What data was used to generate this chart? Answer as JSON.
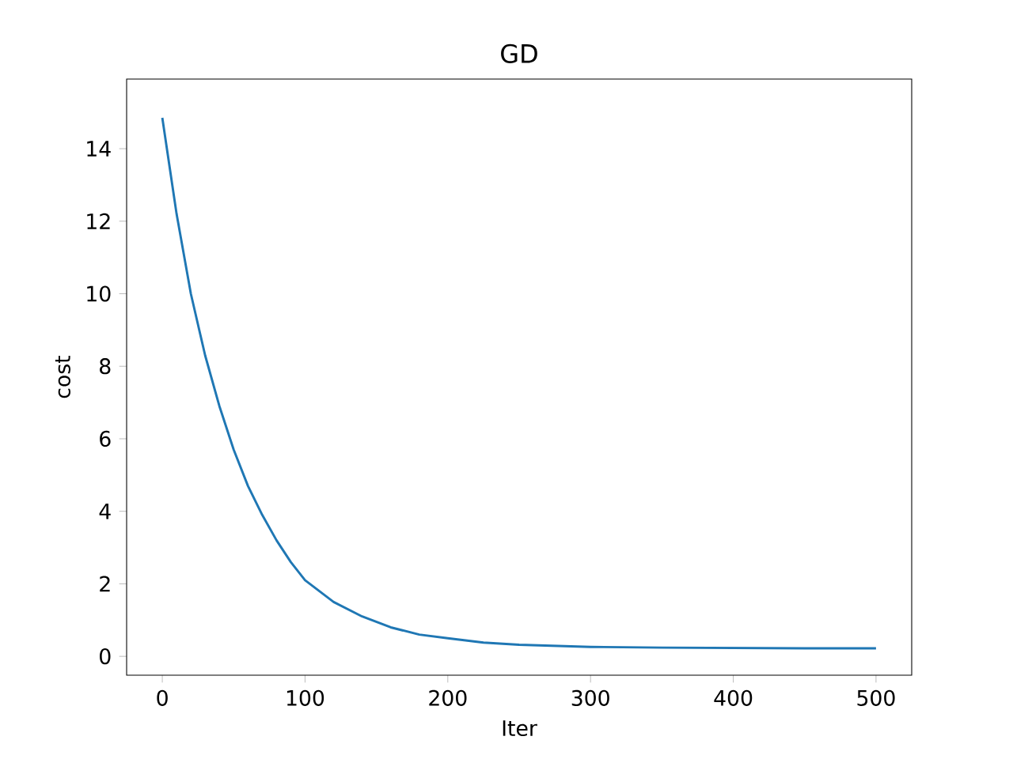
{
  "chart_data": {
    "type": "line",
    "title": "GD",
    "xlabel": "Iter",
    "ylabel": "cost",
    "x": [
      0,
      10,
      20,
      30,
      40,
      50,
      60,
      70,
      80,
      90,
      100,
      120,
      140,
      160,
      180,
      200,
      225,
      250,
      300,
      350,
      400,
      450,
      500
    ],
    "series": [
      {
        "color": "#1f77b4",
        "values": [
          14.85,
          12.2,
          10.0,
          8.3,
          6.9,
          5.7,
          4.7,
          3.9,
          3.2,
          2.6,
          2.1,
          1.5,
          1.1,
          0.8,
          0.6,
          0.5,
          0.38,
          0.32,
          0.26,
          0.24,
          0.23,
          0.22,
          0.22
        ]
      }
    ],
    "xlim": [
      -25,
      525
    ],
    "ylim": [
      -0.52,
      15.92
    ],
    "xticks": [
      0,
      100,
      200,
      300,
      400,
      500
    ],
    "yticks": [
      0,
      2,
      4,
      6,
      8,
      10,
      12,
      14
    ],
    "grid": false,
    "marker": "none",
    "line_style": "solid"
  }
}
